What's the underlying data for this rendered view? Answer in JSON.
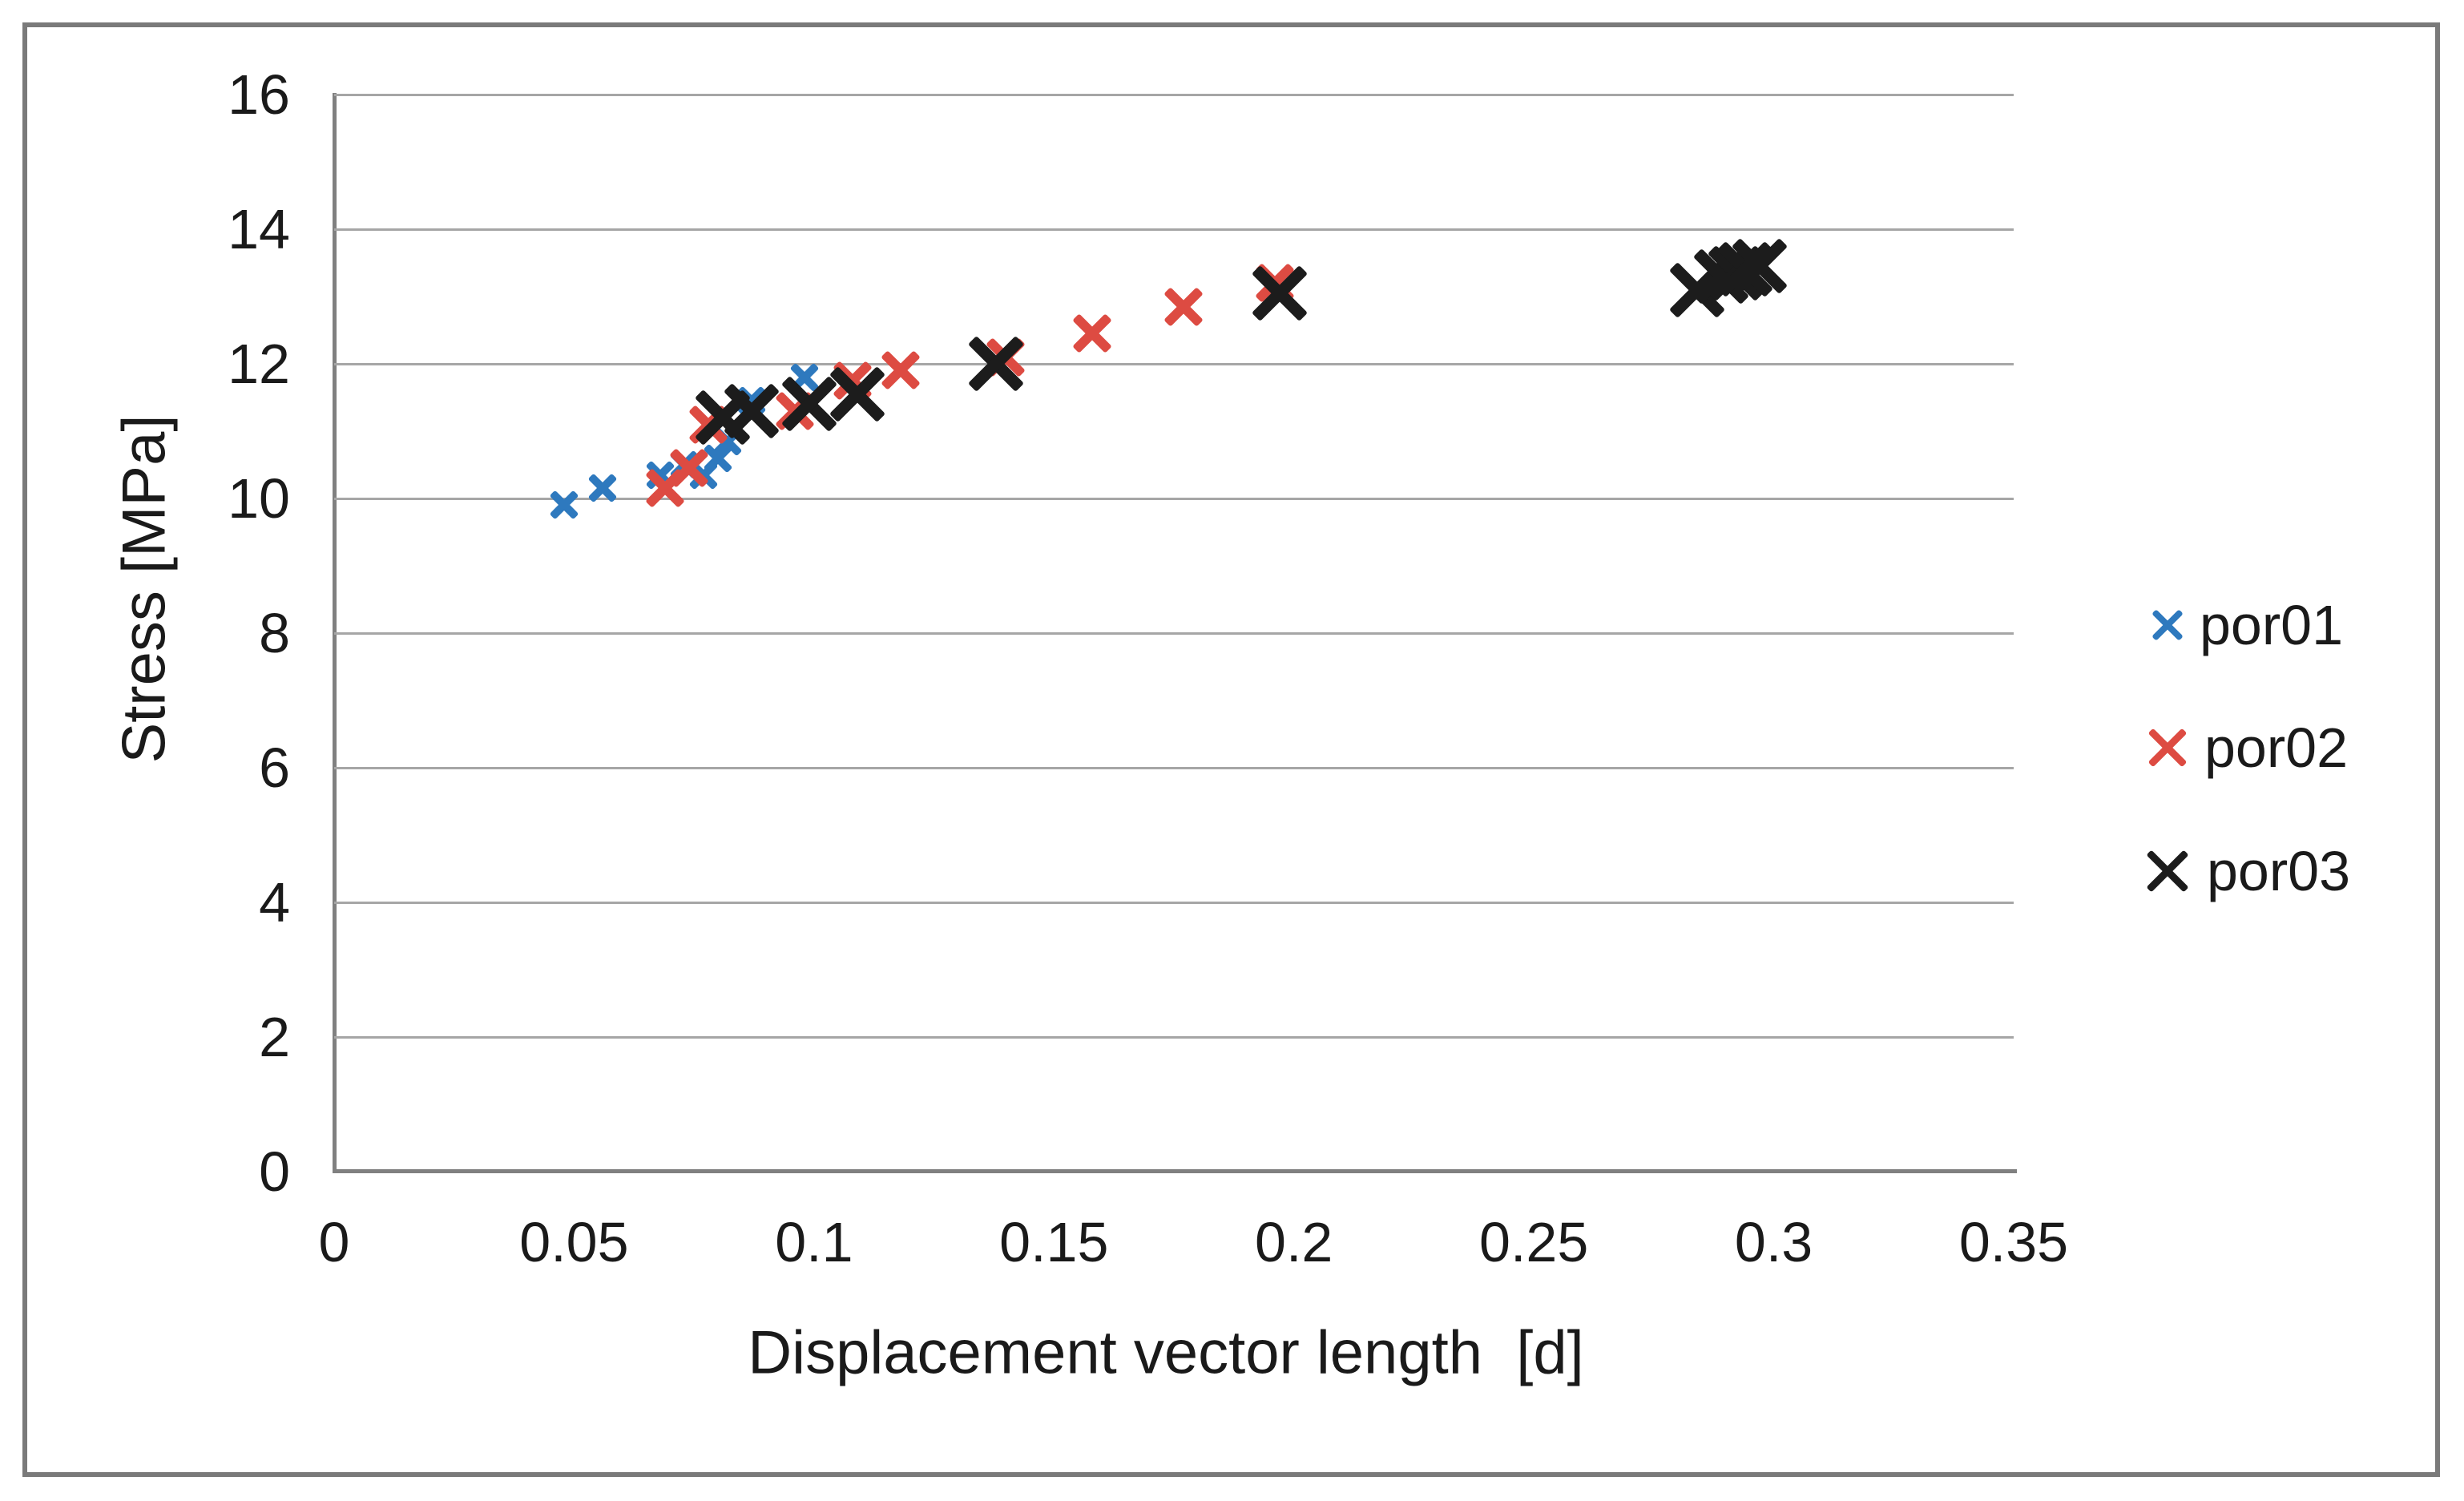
{
  "chart_data": {
    "type": "scatter",
    "title": "",
    "xlabel": "Displacement vector length  [d]",
    "ylabel": "Stress [MPa]",
    "xlim": [
      0,
      0.35
    ],
    "ylim": [
      0,
      16
    ],
    "x_tick_values": [
      0,
      0.05,
      0.1,
      0.15,
      0.2,
      0.25,
      0.3,
      0.35
    ],
    "x_tick_labels": [
      "0",
      "0.05",
      "0.1",
      "0.15",
      "0.2",
      "0.25",
      "0.3",
      "0.35"
    ],
    "y_tick_values": [
      0,
      2,
      4,
      6,
      8,
      10,
      12,
      14,
      16
    ],
    "y_tick_labels": [
      "0",
      "2",
      "4",
      "6",
      "8",
      "10",
      "12",
      "14",
      "16"
    ],
    "grid": "horizontal",
    "legend_position": "right-middle",
    "marker_style": "x",
    "colors": {
      "grid": "#A6A6A6",
      "axis": "#808080",
      "frame": "#7A7A7A",
      "text": "#1A1A1A",
      "por01": "#2E79BE",
      "por02": "#DD4B42",
      "por03": "#1C1C1C"
    },
    "series": [
      {
        "name": "por01",
        "color": "#2E79BE",
        "marker": "x",
        "marker_size": "small",
        "points": [
          [
            0.048,
            9.9
          ],
          [
            0.056,
            10.15
          ],
          [
            0.068,
            10.35
          ],
          [
            0.073,
            10.5
          ],
          [
            0.077,
            10.35
          ],
          [
            0.08,
            10.6
          ],
          [
            0.082,
            10.85
          ],
          [
            0.087,
            11.45
          ],
          [
            0.098,
            11.8
          ]
        ]
      },
      {
        "name": "por02",
        "color": "#DD4B42",
        "marker": "x",
        "marker_size": "medium",
        "points": [
          [
            0.069,
            10.15
          ],
          [
            0.074,
            10.45
          ],
          [
            0.078,
            11.1
          ],
          [
            0.096,
            11.3
          ],
          [
            0.108,
            11.75
          ],
          [
            0.118,
            11.9
          ],
          [
            0.14,
            12.1
          ],
          [
            0.158,
            12.45
          ],
          [
            0.177,
            12.85
          ],
          [
            0.196,
            13.2
          ]
        ]
      },
      {
        "name": "por03",
        "color": "#1C1C1C",
        "marker": "x",
        "marker_size": "large",
        "points": [
          [
            0.081,
            11.2
          ],
          [
            0.087,
            11.3
          ],
          [
            0.099,
            11.4
          ],
          [
            0.109,
            11.55
          ],
          [
            0.138,
            12.0
          ],
          [
            0.197,
            13.05
          ],
          [
            0.284,
            13.1
          ],
          [
            0.289,
            13.3
          ],
          [
            0.292,
            13.35
          ],
          [
            0.294,
            13.4
          ],
          [
            0.297,
            13.45
          ]
        ]
      }
    ]
  },
  "legend": {
    "items": [
      {
        "label": "por01"
      },
      {
        "label": "por02"
      },
      {
        "label": "por03"
      }
    ]
  }
}
